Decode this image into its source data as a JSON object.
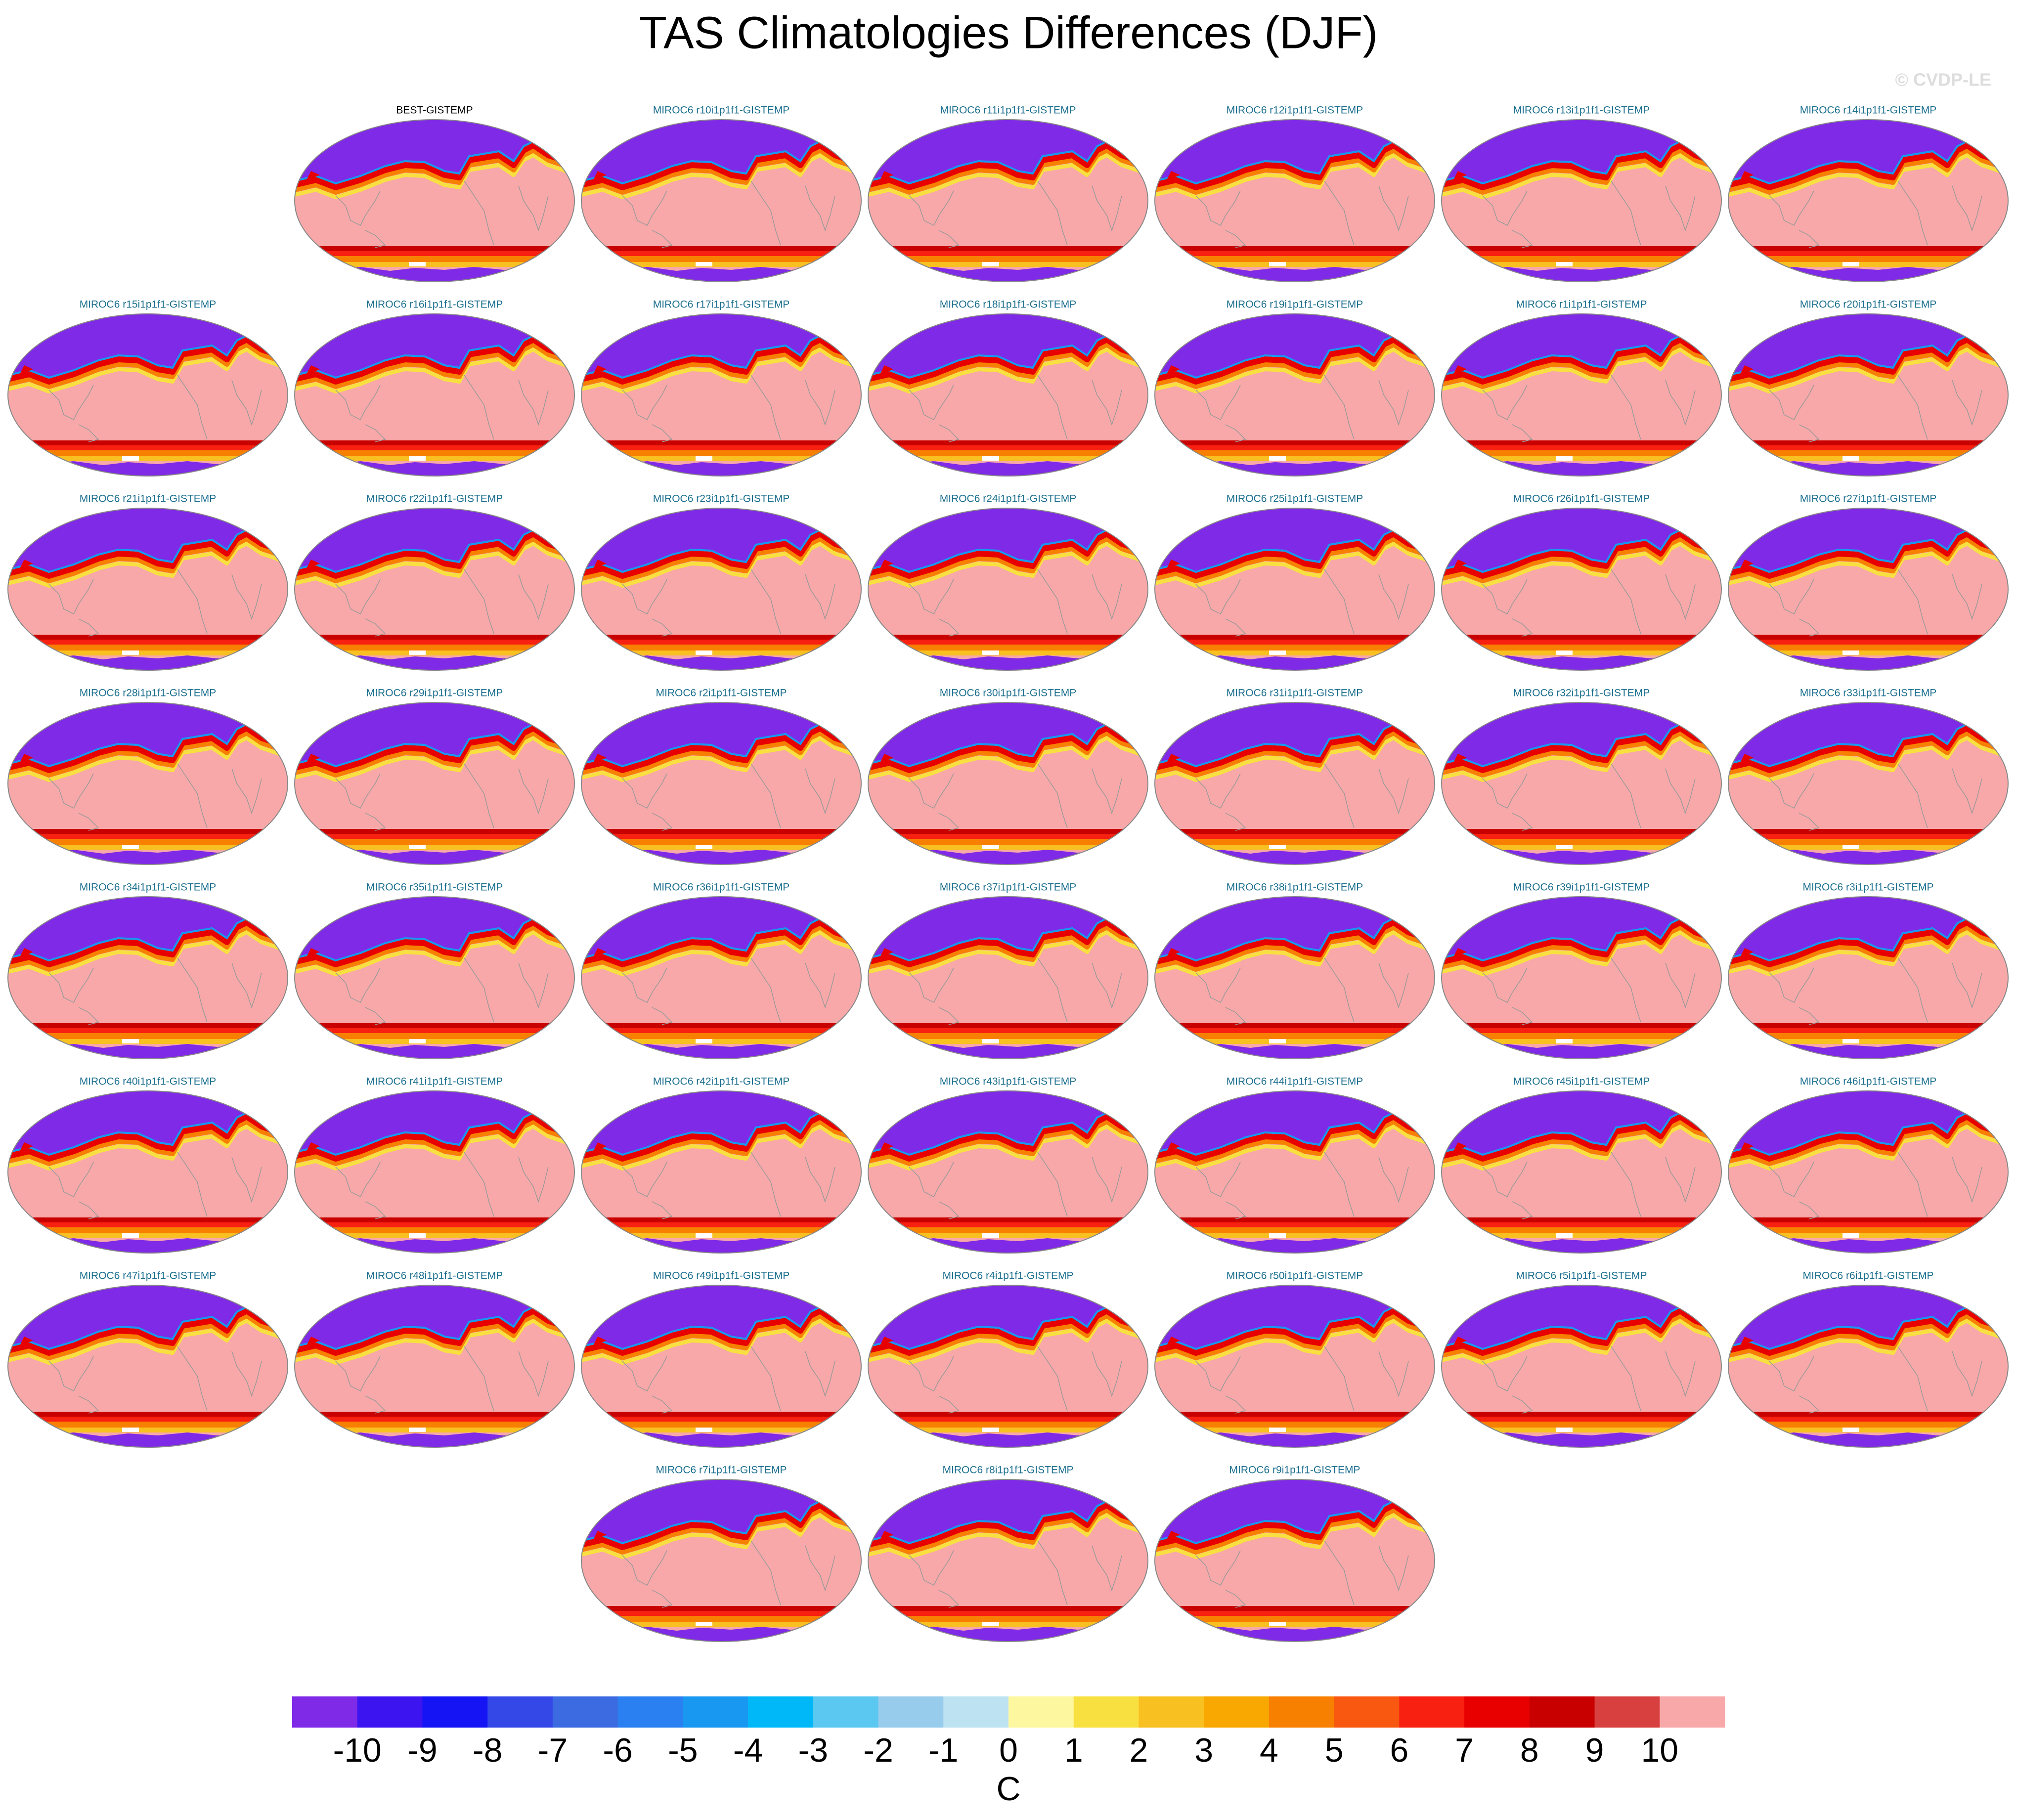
{
  "title": "TAS Climatologies Differences (DJF)",
  "watermark": "© CVDP-LE",
  "panels": [
    {
      "title": "BEST-GISTEMP",
      "title_color": "#000000"
    },
    {
      "title": "MIROC6 r10i1p1f1-GISTEMP",
      "title_color": "#1a6e8e"
    },
    {
      "title": "MIROC6 r11i1p1f1-GISTEMP",
      "title_color": "#1a6e8e"
    },
    {
      "title": "MIROC6 r12i1p1f1-GISTEMP",
      "title_color": "#1a6e8e"
    },
    {
      "title": "MIROC6 r13i1p1f1-GISTEMP",
      "title_color": "#1a6e8e"
    },
    {
      "title": "MIROC6 r14i1p1f1-GISTEMP",
      "title_color": "#1a6e8e"
    },
    {
      "title": "MIROC6 r15i1p1f1-GISTEMP",
      "title_color": "#1a6e8e"
    },
    {
      "title": "MIROC6 r16i1p1f1-GISTEMP",
      "title_color": "#1a6e8e"
    },
    {
      "title": "MIROC6 r17i1p1f1-GISTEMP",
      "title_color": "#1a6e8e"
    },
    {
      "title": "MIROC6 r18i1p1f1-GISTEMP",
      "title_color": "#1a6e8e"
    },
    {
      "title": "MIROC6 r19i1p1f1-GISTEMP",
      "title_color": "#1a6e8e"
    },
    {
      "title": "MIROC6 r1i1p1f1-GISTEMP",
      "title_color": "#1a6e8e"
    },
    {
      "title": "MIROC6 r20i1p1f1-GISTEMP",
      "title_color": "#1a6e8e"
    },
    {
      "title": "MIROC6 r21i1p1f1-GISTEMP",
      "title_color": "#1a6e8e"
    },
    {
      "title": "MIROC6 r22i1p1f1-GISTEMP",
      "title_color": "#1a6e8e"
    },
    {
      "title": "MIROC6 r23i1p1f1-GISTEMP",
      "title_color": "#1a6e8e"
    },
    {
      "title": "MIROC6 r24i1p1f1-GISTEMP",
      "title_color": "#1a6e8e"
    },
    {
      "title": "MIROC6 r25i1p1f1-GISTEMP",
      "title_color": "#1a6e8e"
    },
    {
      "title": "MIROC6 r26i1p1f1-GISTEMP",
      "title_color": "#1a6e8e"
    },
    {
      "title": "MIROC6 r27i1p1f1-GISTEMP",
      "title_color": "#1a6e8e"
    },
    {
      "title": "MIROC6 r28i1p1f1-GISTEMP",
      "title_color": "#1a6e8e"
    },
    {
      "title": "MIROC6 r29i1p1f1-GISTEMP",
      "title_color": "#1a6e8e"
    },
    {
      "title": "MIROC6 r2i1p1f1-GISTEMP",
      "title_color": "#1a6e8e"
    },
    {
      "title": "MIROC6 r30i1p1f1-GISTEMP",
      "title_color": "#1a6e8e"
    },
    {
      "title": "MIROC6 r31i1p1f1-GISTEMP",
      "title_color": "#1a6e8e"
    },
    {
      "title": "MIROC6 r32i1p1f1-GISTEMP",
      "title_color": "#1a6e8e"
    },
    {
      "title": "MIROC6 r33i1p1f1-GISTEMP",
      "title_color": "#1a6e8e"
    },
    {
      "title": "MIROC6 r34i1p1f1-GISTEMP",
      "title_color": "#1a6e8e"
    },
    {
      "title": "MIROC6 r35i1p1f1-GISTEMP",
      "title_color": "#1a6e8e"
    },
    {
      "title": "MIROC6 r36i1p1f1-GISTEMP",
      "title_color": "#1a6e8e"
    },
    {
      "title": "MIROC6 r37i1p1f1-GISTEMP",
      "title_color": "#1a6e8e"
    },
    {
      "title": "MIROC6 r38i1p1f1-GISTEMP",
      "title_color": "#1a6e8e"
    },
    {
      "title": "MIROC6 r39i1p1f1-GISTEMP",
      "title_color": "#1a6e8e"
    },
    {
      "title": "MIROC6 r3i1p1f1-GISTEMP",
      "title_color": "#1a6e8e"
    },
    {
      "title": "MIROC6 r40i1p1f1-GISTEMP",
      "title_color": "#1a6e8e"
    },
    {
      "title": "MIROC6 r41i1p1f1-GISTEMP",
      "title_color": "#1a6e8e"
    },
    {
      "title": "MIROC6 r42i1p1f1-GISTEMP",
      "title_color": "#1a6e8e"
    },
    {
      "title": "MIROC6 r43i1p1f1-GISTEMP",
      "title_color": "#1a6e8e"
    },
    {
      "title": "MIROC6 r44i1p1f1-GISTEMP",
      "title_color": "#1a6e8e"
    },
    {
      "title": "MIROC6 r45i1p1f1-GISTEMP",
      "title_color": "#1a6e8e"
    },
    {
      "title": "MIROC6 r46i1p1f1-GISTEMP",
      "title_color": "#1a6e8e"
    },
    {
      "title": "MIROC6 r47i1p1f1-GISTEMP",
      "title_color": "#1a6e8e"
    },
    {
      "title": "MIROC6 r48i1p1f1-GISTEMP",
      "title_color": "#1a6e8e"
    },
    {
      "title": "MIROC6 r49i1p1f1-GISTEMP",
      "title_color": "#1a6e8e"
    },
    {
      "title": "MIROC6 r4i1p1f1-GISTEMP",
      "title_color": "#1a6e8e"
    },
    {
      "title": "MIROC6 r50i1p1f1-GISTEMP",
      "title_color": "#1a6e8e"
    },
    {
      "title": "MIROC6 r5i1p1f1-GISTEMP",
      "title_color": "#1a6e8e"
    },
    {
      "title": "MIROC6 r6i1p1f1-GISTEMP",
      "title_color": "#1a6e8e"
    },
    {
      "title": "MIROC6 r7i1p1f1-GISTEMP",
      "title_color": "#1a6e8e"
    },
    {
      "title": "MIROC6 r8i1p1f1-GISTEMP",
      "title_color": "#1a6e8e"
    },
    {
      "title": "MIROC6 r9i1p1f1-GISTEMP",
      "title_color": "#1a6e8e"
    }
  ],
  "colorbar": {
    "ticks": [
      -10,
      -9,
      -8,
      -7,
      -6,
      -5,
      -4,
      -3,
      -2,
      -1,
      0,
      1,
      2,
      3,
      4,
      5,
      6,
      7,
      8,
      9,
      10
    ],
    "colors": [
      "#7f2ae6",
      "#3c14f0",
      "#1414f5",
      "#3348e6",
      "#3c6ae0",
      "#2a80f0",
      "#1898f0",
      "#00b8f8",
      "#5ac8f0",
      "#98ccec",
      "#bde3f2",
      "#fdf8a0",
      "#f8e040",
      "#f8c020",
      "#f8a800",
      "#f88000",
      "#f85810",
      "#f82010",
      "#e80000",
      "#c80000",
      "#d84040",
      "#f8a8a8"
    ],
    "label": "C"
  }
}
